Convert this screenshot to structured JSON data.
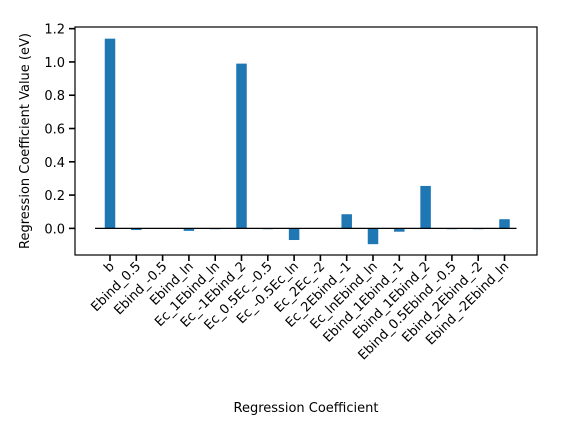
{
  "chart_data": {
    "type": "bar",
    "xlabel": "Regression Coefficient",
    "ylabel": "Regression Coefficient Value (eV)",
    "categories": [
      "b",
      "Ebind_0.5",
      "Ebind_-0.5",
      "Ebind_ln",
      "Ec_1Ebind_ln",
      "Ec_-1Ebind_2",
      "Ec_0.5Ec_-0.5",
      "Ec_-0.5Ec_ln",
      "Ec_2Ec_-2",
      "Ec_2Ebind_-1",
      "Ec_lnEbind_ln",
      "Ebind_1Ebind_-1",
      "Ebind_1Ebind_2",
      "Ebind_0.5Ebind_-0.5",
      "Ebind_2Ebind_-2",
      "Ebind_-2Ebind_ln"
    ],
    "values": [
      1.14,
      -0.01,
      0.0,
      -0.015,
      -0.005,
      0.99,
      -0.005,
      -0.07,
      0.0,
      0.085,
      -0.095,
      -0.02,
      0.255,
      -0.005,
      -0.005,
      0.055
    ],
    "color": "#1f77b4",
    "ylim": [
      -0.16,
      1.21
    ],
    "yticks": [
      {
        "value": 0,
        "label": "0.0"
      },
      0.2,
      0.4,
      0.6,
      0.8,
      {
        "value": 1,
        "label": "1.0"
      },
      1.2
    ],
    "grid": false
  }
}
